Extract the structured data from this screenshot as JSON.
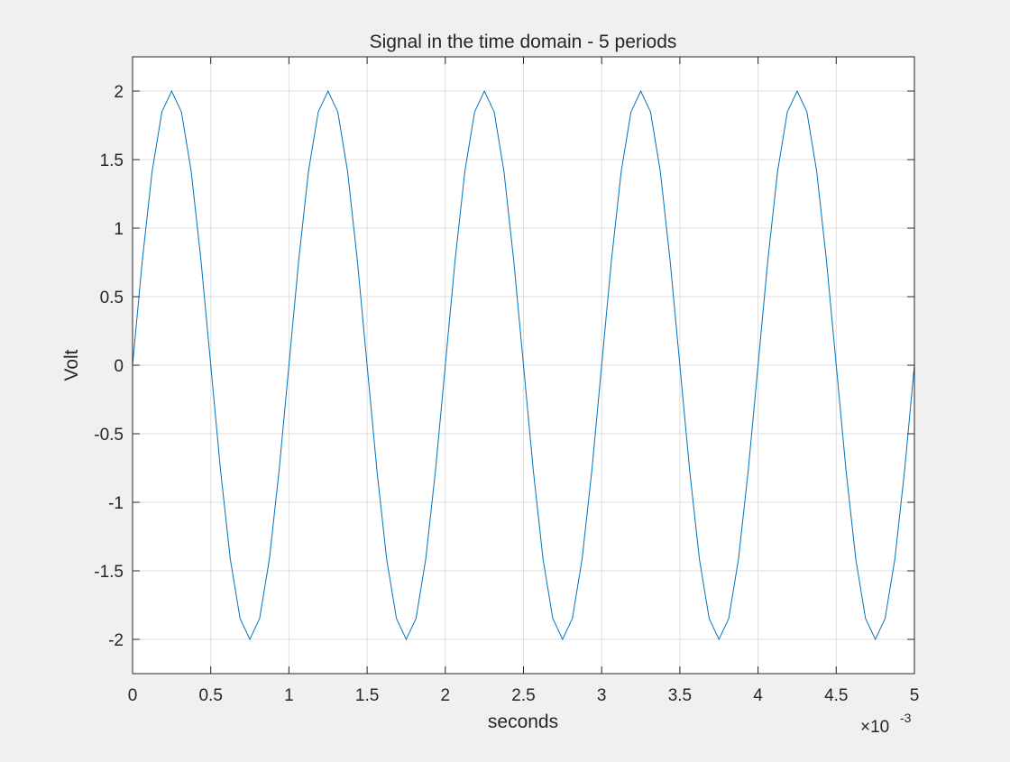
{
  "chart_data": {
    "type": "line",
    "title": "Signal in the time domain - 5 periods",
    "xlabel": "seconds",
    "ylabel": "Volt",
    "x_exponent_label": "×10",
    "x_exponent_power": "-3",
    "xlim": [
      0,
      0.005
    ],
    "ylim": [
      -2.25,
      2.25
    ],
    "grid": true,
    "legend": "none",
    "colors": {
      "line": "#0072BD",
      "axes_background": "#ffffff",
      "figure_background": "#f0f0f0",
      "grid": "#dfdfdf",
      "axis": "#262626"
    },
    "x_ticks": [
      {
        "value": 0,
        "label": "0"
      },
      {
        "value": 0.0005,
        "label": "0.5"
      },
      {
        "value": 0.001,
        "label": "1"
      },
      {
        "value": 0.0015,
        "label": "1.5"
      },
      {
        "value": 0.002,
        "label": "2"
      },
      {
        "value": 0.0025,
        "label": "2.5"
      },
      {
        "value": 0.003,
        "label": "3"
      },
      {
        "value": 0.0035,
        "label": "3.5"
      },
      {
        "value": 0.004,
        "label": "4"
      },
      {
        "value": 0.0045,
        "label": "4.5"
      },
      {
        "value": 0.005,
        "label": "5"
      }
    ],
    "y_ticks": [
      {
        "value": 2,
        "label": "2"
      },
      {
        "value": 1.5,
        "label": "1.5"
      },
      {
        "value": 1,
        "label": "1"
      },
      {
        "value": 0.5,
        "label": "0.5"
      },
      {
        "value": 0,
        "label": "0"
      },
      {
        "value": -0.5,
        "label": "-0.5"
      },
      {
        "value": -1,
        "label": "-1"
      },
      {
        "value": -1.5,
        "label": "-1.5"
      },
      {
        "value": -2,
        "label": "-2"
      }
    ],
    "series": [
      {
        "x": [
          0,
          6.25e-05,
          0.000125,
          0.0001875,
          0.00025,
          0.0003125,
          0.000375,
          0.0004375,
          0.0005,
          0.0005625,
          0.000625,
          0.0006875,
          0.00075,
          0.0008125,
          0.000875,
          0.0009375,
          0.001,
          0.0010625,
          0.001125,
          0.0011875,
          0.00125,
          0.0013125,
          0.001375,
          0.0014375,
          0.0015,
          0.0015625,
          0.001625,
          0.0016875,
          0.00175,
          0.0018125,
          0.001875,
          0.0019375,
          0.002,
          0.0020625,
          0.002125,
          0.0021875,
          0.00225,
          0.0023125,
          0.002375,
          0.0024375,
          0.0025,
          0.0025625,
          0.002625,
          0.0026875,
          0.00275,
          0.0028125,
          0.002875,
          0.0029375,
          0.003,
          0.0030625,
          0.003125,
          0.0031875,
          0.00325,
          0.0033125,
          0.003375,
          0.0034375,
          0.0035,
          0.0035625,
          0.003625,
          0.0036875,
          0.00375,
          0.0038125,
          0.003875,
          0.0039375,
          0.004,
          0.0040625,
          0.004125,
          0.0041875,
          0.00425,
          0.0043125,
          0.004375,
          0.0044375,
          0.0045,
          0.0045625,
          0.004625,
          0.0046875,
          0.00475,
          0.0048125,
          0.004875,
          0.0049375,
          0.005
        ],
        "y": [
          0,
          0.765,
          1.414,
          1.848,
          2,
          1.848,
          1.414,
          0.765,
          0,
          -0.765,
          -1.414,
          -1.848,
          -2,
          -1.848,
          -1.414,
          -0.765,
          0,
          0.765,
          1.414,
          1.848,
          2,
          1.848,
          1.414,
          0.765,
          0,
          -0.765,
          -1.414,
          -1.848,
          -2,
          -1.848,
          -1.414,
          -0.765,
          0,
          0.765,
          1.414,
          1.848,
          2,
          1.848,
          1.414,
          0.765,
          0,
          -0.765,
          -1.414,
          -1.848,
          -2,
          -1.848,
          -1.414,
          -0.765,
          0,
          0.765,
          1.414,
          1.848,
          2,
          1.848,
          1.414,
          0.765,
          0,
          -0.765,
          -1.414,
          -1.848,
          -2,
          -1.848,
          -1.414,
          -0.765,
          0,
          0.765,
          1.414,
          1.848,
          2,
          1.848,
          1.414,
          0.765,
          0,
          -0.765,
          -1.414,
          -1.848,
          -2,
          -1.848,
          -1.414,
          -0.765,
          0
        ]
      }
    ]
  }
}
